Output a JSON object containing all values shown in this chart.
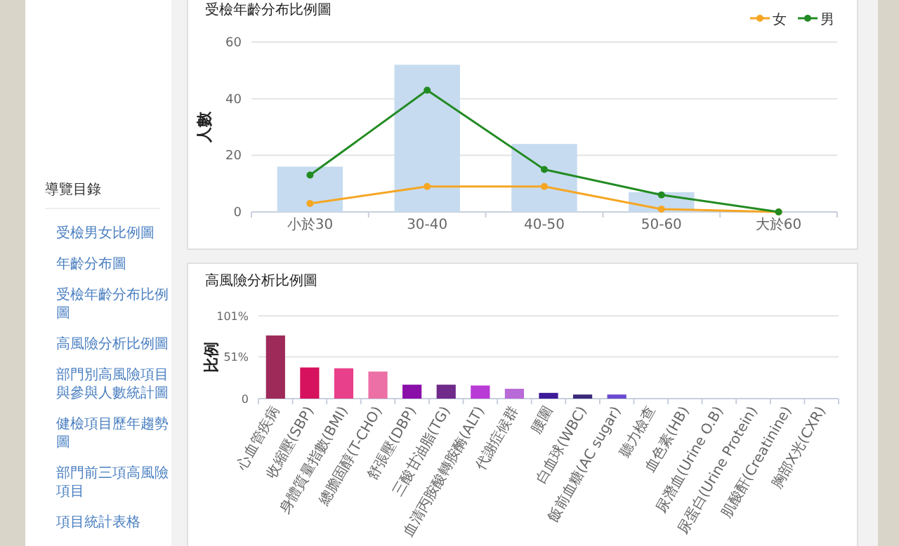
{
  "chart_data": [
    {
      "type": "bar",
      "title": "受檢年齡分布比例圖",
      "ylabel": "人數",
      "categories": [
        "小於30",
        "30-40",
        "40-50",
        "50-60",
        "大於60"
      ],
      "series": [
        {
          "type": "bar",
          "color": "#c6dbef",
          "values": [
            16,
            52,
            24,
            7,
            0
          ]
        },
        {
          "type": "line",
          "name": "女",
          "color": "#f5a623",
          "values": [
            3,
            9,
            9,
            1,
            0
          ]
        },
        {
          "type": "line",
          "name": "男",
          "color": "#228b22",
          "values": [
            13,
            43,
            15,
            6,
            0
          ]
        }
      ],
      "ylim": [
        0,
        60
      ],
      "yticks": [
        0,
        20,
        40,
        60
      ],
      "grid": "y",
      "legend": "top right",
      "marker": "circle"
    },
    {
      "type": "bar",
      "title": "高風險分析比例圖",
      "ylabel": "比例",
      "categories": [
        "心血管疾病",
        "收縮壓(SBP)",
        "身體質量指數(BMI)",
        "總膽固醇(T-CHO)",
        "舒張壓(DBP)",
        "三酸甘油脂(TG)",
        "血清丙胺酸轉胺酶(ALT)",
        "代謝症候群",
        "腰圍",
        "白血球(WBC)",
        "飯前血糖(AC sugar)",
        "聽力檢查",
        "血色素(HB)",
        "尿潛血(Urine O.B)",
        "尿蛋白(Urine Protein)",
        "肌酸酐(Creatinine)",
        "胸部X光(CXR)"
      ],
      "values": [
        77,
        38,
        37,
        33,
        17,
        17,
        16,
        12,
        7,
        5,
        5,
        0,
        0,
        0,
        0,
        0,
        0
      ],
      "colors": [
        "#9e2a5a",
        "#d6125f",
        "#e8408a",
        "#ec6fa5",
        "#8a0fa8",
        "#6f2a8a",
        "#b83bd6",
        "#b86ad6",
        "#3d1a9a",
        "#3a2a7a",
        "#6a4ad0",
        "#6a4ad0",
        "#6a4ad0",
        "#6a4ad0",
        "#6a4ad0",
        "#6a4ad0",
        "#6a4ad0"
      ],
      "ylim": [
        0,
        101
      ],
      "yticks": [
        0,
        {
          "value": 51,
          "label": "51%"
        },
        {
          "value": 101,
          "label": "101%"
        }
      ],
      "grid": "y"
    },
    {
      "type": "other",
      "title": "導覽目錄",
      "annotations": [
        "受檢男女比例圖",
        "年齡分布圖",
        "受檢年齡分布比例圖",
        "高風險分析比例圖",
        "部門別高風險項目與參與人數統計圖",
        "健檢項目歷年趨勢圖",
        "部門前三項高風險項目",
        "項目統計表格"
      ]
    }
  ]
}
